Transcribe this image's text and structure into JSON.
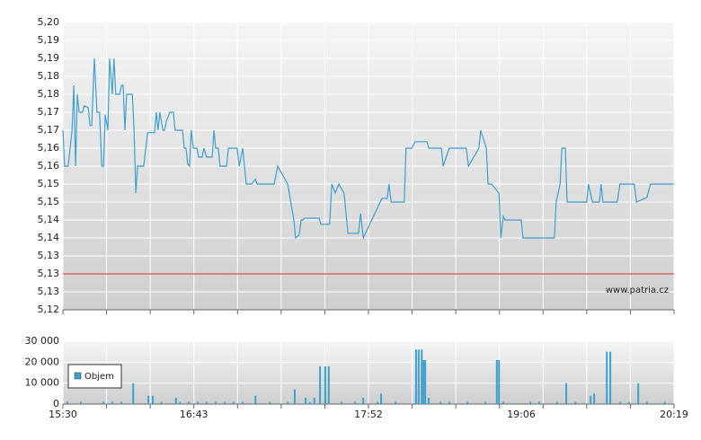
{
  "chart_data": [
    {
      "type": "line",
      "xlim": [
        0,
        14
      ],
      "xgrid": [
        0,
        1,
        2,
        3,
        4,
        5,
        6,
        7,
        8,
        9,
        10,
        11,
        12,
        13,
        14
      ],
      "ylim": [
        5.12,
        5.2
      ],
      "yticks": [
        {
          "value": 5.2,
          "label": "5,20"
        },
        {
          "value": 5.195,
          "label": "5,19"
        },
        {
          "value": 5.19,
          "label": "5,19"
        },
        {
          "value": 5.185,
          "label": "5,18"
        },
        {
          "value": 5.18,
          "label": "5,18"
        },
        {
          "value": 5.175,
          "label": "5,17"
        },
        {
          "value": 5.17,
          "label": "5,17"
        },
        {
          "value": 5.165,
          "label": "5,16"
        },
        {
          "value": 5.16,
          "label": "5,16"
        },
        {
          "value": 5.155,
          "label": "5,15"
        },
        {
          "value": 5.15,
          "label": "5,15"
        },
        {
          "value": 5.145,
          "label": "5,14"
        },
        {
          "value": 5.14,
          "label": "5,14"
        },
        {
          "value": 5.135,
          "label": "5,13"
        },
        {
          "value": 5.13,
          "label": "5,13"
        },
        {
          "value": 5.125,
          "label": "5,13"
        },
        {
          "value": 5.12,
          "label": "5,12"
        }
      ],
      "reference_line": {
        "value": 5.13,
        "color": "#e03030"
      },
      "annotation": "www.patria.cz",
      "x": [
        0,
        0.04,
        0.12,
        0.21,
        0.25,
        0.29,
        0.33,
        0.37,
        0.45,
        0.49,
        0.58,
        0.62,
        0.66,
        0.72,
        0.78,
        0.84,
        0.89,
        0.93,
        0.97,
        1.03,
        1.07,
        1.13,
        1.17,
        1.21,
        1.3,
        1.34,
        1.38,
        1.42,
        1.46,
        1.59,
        1.63,
        1.67,
        1.71,
        1.85,
        1.94,
        2.1,
        2.14,
        2.18,
        2.22,
        2.29,
        2.33,
        2.37,
        2.45,
        2.53,
        2.57,
        2.74,
        2.78,
        2.82,
        2.86,
        2.9,
        2.94,
        2.99,
        3.07,
        3.11,
        3.19,
        3.23,
        3.29,
        3.42,
        3.46,
        3.5,
        3.56,
        3.6,
        3.75,
        3.79,
        3.99,
        4.04,
        4.12,
        4.2,
        4.32,
        4.41,
        4.45,
        4.84,
        4.92,
        5.15,
        5.29,
        5.33,
        5.41,
        5.46,
        5.5,
        5.54,
        5.87,
        5.91,
        6.11,
        6.16,
        6.24,
        6.32,
        6.44,
        6.53,
        6.77,
        6.82,
        6.88,
        7.27,
        7.31,
        7.43,
        7.47,
        7.52,
        7.82,
        7.86,
        7.99,
        8.07,
        8.34,
        8.38,
        8.67,
        8.71,
        8.85,
        9.24,
        9.29,
        9.53,
        9.57,
        9.7,
        9.74,
        9.82,
        9.99,
        10.03,
        10.09,
        10.13,
        10.5,
        10.54,
        11.26,
        11.3,
        11.39,
        11.43,
        11.51,
        11.55,
        12.0,
        12.04,
        12.13,
        12.29,
        12.33,
        12.37,
        12.7,
        12.76,
        13.09,
        13.14,
        13.38,
        13.46,
        14
      ],
      "series": [
        {
          "color": "#3ea0cf",
          "values": [
            5.17,
            5.16,
            5.16,
            5.17,
            5.1825,
            5.16,
            5.18,
            5.175,
            5.175,
            5.1768,
            5.1763,
            5.1713,
            5.1713,
            5.19,
            5.175,
            5.175,
            5.16,
            5.16,
            5.1743,
            5.17,
            5.19,
            5.18,
            5.19,
            5.18,
            5.18,
            5.1825,
            5.1825,
            5.17,
            5.18,
            5.18,
            5.17,
            5.1525,
            5.16,
            5.16,
            5.1693,
            5.1693,
            5.175,
            5.17,
            5.175,
            5.17,
            5.17,
            5.1725,
            5.175,
            5.175,
            5.17,
            5.17,
            5.165,
            5.165,
            5.1605,
            5.16,
            5.17,
            5.165,
            5.165,
            5.1625,
            5.1625,
            5.165,
            5.1625,
            5.1625,
            5.17,
            5.165,
            5.165,
            5.16,
            5.16,
            5.165,
            5.165,
            5.16,
            5.165,
            5.155,
            5.155,
            5.1563,
            5.155,
            5.155,
            5.16,
            5.155,
            5.145,
            5.14,
            5.1408,
            5.145,
            5.145,
            5.1455,
            5.1455,
            5.1438,
            5.1438,
            5.155,
            5.1525,
            5.155,
            5.1525,
            5.1413,
            5.1413,
            5.1468,
            5.14,
            5.15,
            5.151,
            5.151,
            5.155,
            5.15,
            5.15,
            5.165,
            5.165,
            5.1668,
            5.1668,
            5.165,
            5.165,
            5.16,
            5.165,
            5.165,
            5.16,
            5.165,
            5.17,
            5.165,
            5.155,
            5.155,
            5.1525,
            5.14,
            5.146,
            5.145,
            5.145,
            5.14,
            5.14,
            5.15,
            5.155,
            5.165,
            5.165,
            5.15,
            5.15,
            5.155,
            5.15,
            5.15,
            5.155,
            5.15,
            5.15,
            5.155,
            5.155,
            5.15,
            5.1513,
            5.155,
            5.155
          ]
        }
      ]
    },
    {
      "type": "bar",
      "xlim": [
        0,
        14
      ],
      "xgrid": [
        0,
        1,
        2,
        3,
        4,
        5,
        6,
        7,
        8,
        9,
        10,
        11,
        12,
        13,
        14
      ],
      "xticks": [
        {
          "value": 0,
          "label": "15:30"
        },
        {
          "value": 3,
          "label": "16:43"
        },
        {
          "value": 7,
          "label": "17:52"
        },
        {
          "value": 10.5,
          "label": "19:06"
        },
        {
          "value": 14,
          "label": "20:19"
        }
      ],
      "ylim": [
        0,
        30000
      ],
      "yticks": [
        0,
        {
          "value": 10000,
          "label": "10 000"
        },
        {
          "value": 20000,
          "label": "20 000"
        },
        {
          "value": 30000,
          "label": "30 000"
        }
      ],
      "legend": "top-left",
      "x": [
        0.1,
        0.41,
        0.93,
        1.13,
        1.34,
        1.61,
        1.96,
        2.06,
        2.26,
        2.59,
        2.68,
        2.88,
        3.09,
        3.29,
        3.5,
        3.71,
        3.91,
        4.12,
        4.41,
        4.74,
        5.15,
        5.31,
        5.56,
        5.66,
        5.76,
        5.89,
        6.01,
        6.09,
        6.38,
        6.69,
        6.88,
        7.21,
        7.29,
        7.62,
        8.09,
        8.15,
        8.22,
        8.26,
        8.3,
        8.38,
        8.65,
        8.85,
        9.27,
        9.68,
        9.94,
        9.99,
        10.09,
        10.71,
        10.91,
        11.32,
        11.53,
        11.74,
        12.09,
        12.17,
        12.46,
        12.54,
        12.77,
        12.97,
        13.18,
        13.38,
        13.79
      ],
      "series": [
        {
          "name": "Objem",
          "color": "#3ea0cf",
          "values": [
            1000,
            1000,
            1000,
            1000,
            1000,
            10000,
            4000,
            4000,
            1000,
            3000,
            1000,
            1000,
            1000,
            1000,
            1000,
            1000,
            1000,
            1000,
            4000,
            1000,
            1000,
            7000,
            3000,
            1000,
            3000,
            18000,
            18000,
            18000,
            1000,
            1000,
            3000,
            1000,
            5000,
            1000,
            26000,
            26000,
            26000,
            21000,
            21000,
            3000,
            1000,
            1000,
            1000,
            1000,
            21000,
            21000,
            1000,
            1000,
            1000,
            1000,
            10000,
            1000,
            4000,
            5000,
            25000,
            25000,
            1000,
            1000,
            10000,
            1000,
            1000
          ]
        }
      ]
    }
  ]
}
